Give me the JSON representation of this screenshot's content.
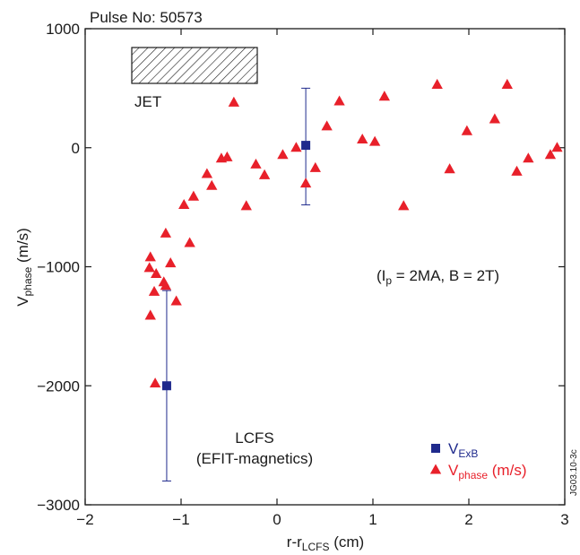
{
  "chart_data": {
    "type": "scatter",
    "header": "Pulse No: 50573",
    "xlabel": {
      "main": "r-r",
      "sub": "LCFS",
      "unit": " (cm)"
    },
    "ylabel": {
      "main": "V",
      "sub": "phase",
      "unit": " (m/s)"
    },
    "xlim": [
      -2,
      3
    ],
    "ylim": [
      -3000,
      1000
    ],
    "xticks": [
      -2,
      -1,
      0,
      1,
      2,
      3
    ],
    "yticks": [
      -3000,
      -2000,
      -1000,
      0,
      1000
    ],
    "xtick_labels": [
      "−2",
      "−1",
      "0",
      "1",
      "2",
      "3"
    ],
    "ytick_labels": [
      "−3000",
      "−2000",
      "−1000",
      "0",
      "1000"
    ],
    "grid": false,
    "legend_position": "bottom-right",
    "series": [
      {
        "name": {
          "main": "V",
          "sub": "ExB",
          "unit": ""
        },
        "marker": "square",
        "color": "#1f2a8c",
        "points": [
          {
            "x": -1.15,
            "y": -2000,
            "err_low": -2800,
            "err_high": -1200
          },
          {
            "x": 0.3,
            "y": 20,
            "err_low": -480,
            "err_high": 500
          }
        ]
      },
      {
        "name": {
          "main": "V",
          "sub": "phase",
          "unit": " (m/s)"
        },
        "marker": "triangle",
        "color": "#e8202a",
        "points": [
          {
            "x": -1.32,
            "y": -920
          },
          {
            "x": -1.33,
            "y": -1010
          },
          {
            "x": -1.26,
            "y": -1060
          },
          {
            "x": -1.28,
            "y": -1210
          },
          {
            "x": -1.32,
            "y": -1410
          },
          {
            "x": -1.27,
            "y": -1980
          },
          {
            "x": -1.18,
            "y": -1130
          },
          {
            "x": -1.16,
            "y": -1160
          },
          {
            "x": -1.16,
            "y": -720
          },
          {
            "x": -1.11,
            "y": -970
          },
          {
            "x": -1.05,
            "y": -1290
          },
          {
            "x": -0.97,
            "y": -480
          },
          {
            "x": -0.91,
            "y": -800
          },
          {
            "x": -0.87,
            "y": -410
          },
          {
            "x": -0.73,
            "y": -220
          },
          {
            "x": -0.68,
            "y": -320
          },
          {
            "x": -0.58,
            "y": -90
          },
          {
            "x": -0.52,
            "y": -80
          },
          {
            "x": -0.45,
            "y": 380
          },
          {
            "x": -0.32,
            "y": -490
          },
          {
            "x": -0.22,
            "y": -140
          },
          {
            "x": -0.13,
            "y": -230
          },
          {
            "x": 0.06,
            "y": -60
          },
          {
            "x": 0.2,
            "y": 0
          },
          {
            "x": 0.3,
            "y": -300
          },
          {
            "x": 0.4,
            "y": -170
          },
          {
            "x": 0.52,
            "y": 180
          },
          {
            "x": 0.65,
            "y": 390
          },
          {
            "x": 0.89,
            "y": 70
          },
          {
            "x": 1.02,
            "y": 50
          },
          {
            "x": 1.12,
            "y": 430
          },
          {
            "x": 1.32,
            "y": -490
          },
          {
            "x": 1.67,
            "y": 530
          },
          {
            "x": 1.8,
            "y": -180
          },
          {
            "x": 1.98,
            "y": 140
          },
          {
            "x": 2.27,
            "y": 240
          },
          {
            "x": 2.4,
            "y": 530
          },
          {
            "x": 2.5,
            "y": -200
          },
          {
            "x": 2.62,
            "y": -90
          },
          {
            "x": 2.85,
            "y": -60
          },
          {
            "x": 2.92,
            "y": 0
          }
        ]
      }
    ],
    "annotations": {
      "device": "JET",
      "conditions": {
        "open": "(I",
        "sub": "p",
        "rest": " = 2MA, B = 2T)"
      },
      "lcfs_line1": "LCFS",
      "lcfs_line2": "(EFIT-magnetics)",
      "figure_id": "JG03.10-3c"
    }
  }
}
